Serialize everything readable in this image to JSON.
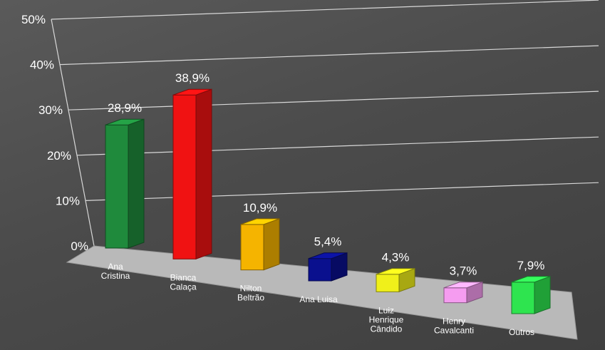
{
  "chart_data": {
    "type": "bar",
    "title": "",
    "xlabel": "",
    "ylabel": "",
    "ylim": [
      0,
      50
    ],
    "y_ticks": [
      "0%",
      "10%",
      "20%",
      "30%",
      "40%",
      "50%"
    ],
    "categories": [
      [
        "Ana",
        "Cristina"
      ],
      [
        "Bianca",
        "Calaça"
      ],
      [
        "Nilton",
        "Beltrão"
      ],
      [
        "Ana Luisa"
      ],
      [
        "Luiz",
        "Henrique",
        "Cândido"
      ],
      [
        "Henry",
        "Cavalcanti"
      ],
      [
        "Outros"
      ]
    ],
    "values": [
      28.9,
      38.9,
      10.9,
      5.4,
      4.3,
      3.7,
      7.9
    ],
    "value_labels": [
      "28,9%",
      "38,9%",
      "10,9%",
      "5,4%",
      "4,3%",
      "3,7%",
      "7,9%"
    ],
    "colors": [
      "#1f8a3c",
      "#f01212",
      "#f5b400",
      "#0a108e",
      "#f0f01a",
      "#f59cf0",
      "#2ee44f"
    ],
    "grid": true,
    "style": "3d-perspective"
  }
}
